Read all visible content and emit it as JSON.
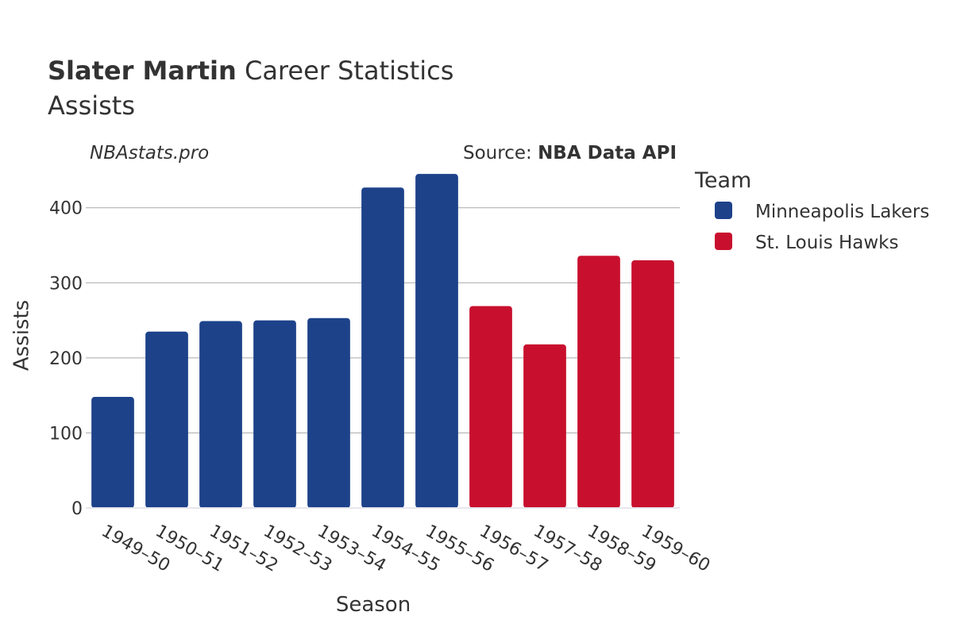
{
  "header": {
    "title_bold": "Slater Martin",
    "title_rest": " Career Statistics",
    "subtitle": "Assists"
  },
  "watermark": "NBAstats.pro",
  "source": {
    "prefix": "Source: ",
    "name": "NBA Data API"
  },
  "legend": {
    "title": "Team",
    "items": [
      {
        "label": "Minneapolis Lakers",
        "color": "#1d428a"
      },
      {
        "label": "St. Louis Hawks",
        "color": "#c8102e"
      }
    ]
  },
  "chart_data": {
    "type": "bar",
    "title": "Slater Martin Career Statistics",
    "subtitle": "Assists",
    "xlabel": "Season",
    "ylabel": "Assists",
    "ylim": [
      0,
      460
    ],
    "yticks": [
      0,
      100,
      200,
      300,
      400
    ],
    "grid": true,
    "legend_position": "right",
    "categories": [
      "1949–50",
      "1950–51",
      "1951–52",
      "1952–53",
      "1953–54",
      "1954–55",
      "1955–56",
      "1956–57",
      "1957–58",
      "1958–59",
      "1959–60"
    ],
    "values": [
      148,
      235,
      249,
      250,
      253,
      427,
      445,
      269,
      218,
      336,
      330
    ],
    "teams": [
      "Minneapolis Lakers",
      "Minneapolis Lakers",
      "Minneapolis Lakers",
      "Minneapolis Lakers",
      "Minneapolis Lakers",
      "Minneapolis Lakers",
      "Minneapolis Lakers",
      "St. Louis Hawks",
      "St. Louis Hawks",
      "St. Louis Hawks",
      "St. Louis Hawks"
    ]
  }
}
